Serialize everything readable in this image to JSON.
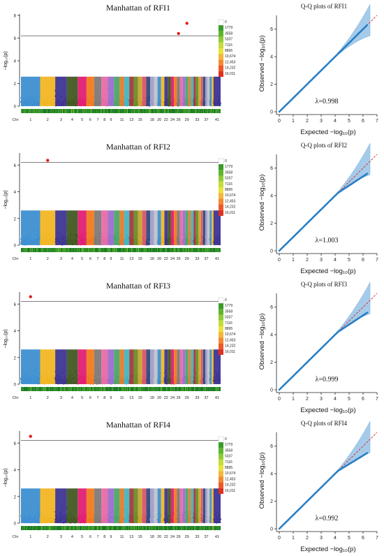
{
  "figure": {
    "chr_label": "Chr",
    "chr_ticks": [
      "1",
      "2",
      "3",
      "4",
      "5",
      "6",
      "7",
      "8",
      "9",
      "11",
      "13",
      "15",
      "18",
      "20",
      "22",
      "24",
      "26",
      "29",
      "33",
      "37",
      "41"
    ],
    "density_legend": [
      "0",
      "1779",
      "3558",
      "5337",
      "7116",
      "8895",
      "10,674",
      "12,453",
      "14,232",
      "16,011"
    ],
    "density_colors": [
      "#1b7a2a",
      "#3a9a2a",
      "#5fb52d",
      "#8fcb35",
      "#c3dc3a",
      "#e9e23d",
      "#f4b63a",
      "#f28a30",
      "#ec5a28",
      "#e0301e"
    ],
    "qq_xlabel": "Expected  −log₁₀(p)",
    "qq_ylabel": "Observed  −log₁₀(p)",
    "chr_colors": [
      "#3d8fd1",
      "#f2b624",
      "#3d3592",
      "#415a21",
      "#e01e73",
      "#f2791d",
      "#7d7a78",
      "#e66aa8",
      "#9b6fce",
      "#4aa66a",
      "#d97f32",
      "#3fb5c4",
      "#a23b3b",
      "#6c8b2b",
      "#c9a22f",
      "#d7566e",
      "#35497a",
      "#9c9ecf",
      "#c2c2c2"
    ]
  },
  "chart_data": [
    {
      "type": "scatter",
      "kind": "manhattan",
      "title": "Manhattan of RFI1",
      "ylabel": "−log₁₀(p)",
      "ylim": [
        0,
        8
      ],
      "yticks": [
        0,
        2,
        4,
        6,
        8
      ],
      "threshold": 6.2,
      "significant_points": [
        {
          "chr": "29",
          "y": 7.3
        },
        {
          "chr": "26",
          "y": 6.4
        }
      ]
    },
    {
      "type": "scatter",
      "kind": "qq",
      "title": "Q-Q plots of RFI1",
      "xlim": [
        0,
        7
      ],
      "ylim": [
        0,
        7
      ],
      "xticks": [
        0,
        1,
        2,
        3,
        4,
        5,
        6,
        7
      ],
      "yticks": [
        0,
        2,
        4,
        6
      ],
      "lambda": "λ=0.998",
      "end_observed": 6.3
    },
    {
      "type": "scatter",
      "kind": "manhattan",
      "title": "Manhattan of RFI2",
      "ylabel": "−log₁₀(p)",
      "ylim": [
        0,
        6.8
      ],
      "yticks": [
        0,
        2,
        4,
        6
      ],
      "threshold": 6.2,
      "significant_points": [
        {
          "chr": "2",
          "y": 6.35
        }
      ]
    },
    {
      "type": "scatter",
      "kind": "qq",
      "title": "Q-Q plots of RFI2",
      "xlim": [
        0,
        7
      ],
      "ylim": [
        0,
        7
      ],
      "xticks": [
        0,
        1,
        2,
        3,
        4,
        5,
        6,
        7
      ],
      "yticks": [
        0,
        2,
        4,
        6
      ],
      "lambda": "λ=1.003",
      "end_observed": 5.6
    },
    {
      "type": "scatter",
      "kind": "manhattan",
      "title": "Manhattan of RFI3",
      "ylabel": "−log₁₀(p)",
      "ylim": [
        0,
        6.8
      ],
      "yticks": [
        0,
        2,
        4,
        6
      ],
      "threshold": 6.2,
      "significant_points": [
        {
          "chr": "1",
          "y": 6.55
        }
      ]
    },
    {
      "type": "scatter",
      "kind": "qq",
      "title": "Q-Q plots of RFI3",
      "xlim": [
        0,
        7
      ],
      "ylim": [
        0,
        7
      ],
      "xticks": [
        0,
        1,
        2,
        3,
        4,
        5,
        6,
        7
      ],
      "yticks": [
        0,
        2,
        4,
        6
      ],
      "lambda": "λ=0.999",
      "end_observed": 5.6
    },
    {
      "type": "scatter",
      "kind": "manhattan",
      "title": "Manhattan of RFI4",
      "ylabel": "−log₁₀(p)",
      "ylim": [
        0,
        6.8
      ],
      "yticks": [
        0,
        2,
        4,
        6
      ],
      "threshold": 6.2,
      "significant_points": [
        {
          "chr": "1",
          "y": 6.5
        }
      ]
    },
    {
      "type": "scatter",
      "kind": "qq",
      "title": "Q-Q plots of RFI4",
      "xlim": [
        0,
        7
      ],
      "ylim": [
        0,
        7
      ],
      "xticks": [
        0,
        1,
        2,
        3,
        4,
        5,
        6,
        7
      ],
      "yticks": [
        0,
        2,
        4,
        6
      ],
      "lambda": "λ=0.992",
      "end_observed": 5.5
    }
  ]
}
